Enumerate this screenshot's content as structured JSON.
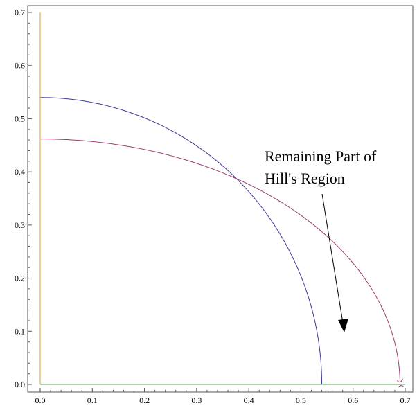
{
  "chart_data": {
    "type": "line",
    "title": "",
    "xlabel": "",
    "ylabel": "",
    "xlim": [
      -0.02,
      0.7
    ],
    "ylim": [
      -0.01,
      0.7
    ],
    "x_ticks": [
      0.0,
      0.1,
      0.2,
      0.3,
      0.4,
      0.5,
      0.6,
      0.7
    ],
    "y_ticks": [
      0.0,
      0.1,
      0.2,
      0.3,
      0.4,
      0.5,
      0.6,
      0.7
    ],
    "x_tick_labels": [
      "0.0",
      "0.1",
      "0.2",
      "0.3",
      "0.4",
      "0.5",
      "0.6",
      "0.7"
    ],
    "y_tick_labels": [
      "0.0",
      "0.1",
      "0.2",
      "0.3",
      "0.4",
      "0.5",
      "0.6",
      "0.7"
    ],
    "grid": false,
    "frame": "box",
    "series": [
      {
        "color": "#3a3a9c",
        "kind": "quarter-circle",
        "points": [
          [
            0.0,
            0.54
          ],
          [
            0.2,
            0.502
          ],
          [
            0.3,
            0.449
          ],
          [
            0.4,
            0.363
          ],
          [
            0.457,
            0.288
          ],
          [
            0.5,
            0.205
          ],
          [
            0.53,
            0.103
          ],
          [
            0.54,
            0.0
          ]
        ]
      },
      {
        "color": "#9c3a6e",
        "kind": "quarter-ellipse",
        "points": [
          [
            0.0,
            0.462
          ],
          [
            0.1,
            0.451
          ],
          [
            0.2,
            0.423
          ],
          [
            0.3,
            0.375
          ],
          [
            0.4,
            0.309
          ],
          [
            0.457,
            0.288
          ],
          [
            0.5,
            0.247
          ],
          [
            0.6,
            0.159
          ],
          [
            0.65,
            0.098
          ],
          [
            0.69,
            0.0
          ]
        ]
      },
      {
        "color": "#c9a33a",
        "kind": "vertical-line",
        "points": [
          [
            0.0,
            0.0
          ],
          [
            0.0,
            0.7
          ]
        ]
      },
      {
        "color": "#5aa05a",
        "kind": "horizontal-line",
        "points": [
          [
            0.0,
            0.0
          ],
          [
            0.7,
            0.0
          ]
        ]
      }
    ],
    "annotation": {
      "lines": [
        "Remaining Part of",
        "Hill's Region"
      ],
      "arrow_tail": [
        0.58,
        0.365
      ],
      "arrow_head": [
        0.58,
        0.1
      ]
    }
  }
}
